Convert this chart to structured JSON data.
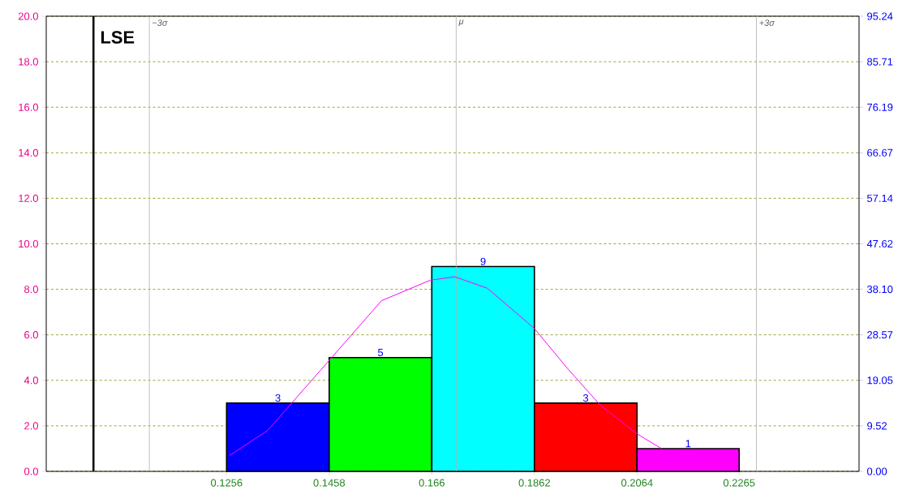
{
  "chart_data": {
    "type": "histogram",
    "bins": [
      0.1256,
      0.1458,
      0.166,
      0.1862,
      0.2064,
      0.2265
    ],
    "values": [
      3,
      5,
      9,
      3,
      1
    ],
    "colors": [
      "#0000ff",
      "#00ff00",
      "#00ffff",
      "#ff0000",
      "#ff00ff"
    ],
    "value_labels": [
      "3",
      "5",
      "9",
      "3",
      "1"
    ],
    "series": [
      {
        "type": "line",
        "color": "#ff00ff",
        "x": [
          0.1262,
          0.1337,
          0.1457,
          0.1561,
          0.1657,
          0.1705,
          0.1769,
          0.1861,
          0.1928,
          0.1992,
          0.2064,
          0.2112
        ],
        "values": [
          0.7,
          1.8,
          4.85,
          7.5,
          8.4,
          8.55,
          8.05,
          6.3,
          4.5,
          2.9,
          1.65,
          1.0
        ]
      }
    ],
    "xlim": [
      0.0901,
      0.2501
    ],
    "xticks": [
      0.1256,
      0.1458,
      0.166,
      0.1862,
      0.2064,
      0.2265
    ],
    "ylim": [
      0,
      20
    ],
    "yticks": [
      {
        "value": 0,
        "label": "0.0"
      },
      {
        "value": 2,
        "label": "2.0"
      },
      {
        "value": 4,
        "label": "4.0"
      },
      {
        "value": 6,
        "label": "6.0"
      },
      {
        "value": 8,
        "label": "8.0"
      },
      {
        "value": 10,
        "label": "10.0"
      },
      {
        "value": 12,
        "label": "12.0"
      },
      {
        "value": 14,
        "label": "14.0"
      },
      {
        "value": 16,
        "label": "16.0"
      },
      {
        "value": 18,
        "label": "18.0"
      },
      {
        "value": 20,
        "label": "20.0"
      }
    ],
    "y2lim": [
      0,
      95.24
    ],
    "y2ticks": [
      {
        "value": 0,
        "label": "0.00"
      },
      9.52,
      19.05,
      28.57,
      {
        "value": 38.1,
        "label": "38.10"
      },
      47.62,
      57.14,
      66.67,
      76.19,
      85.71,
      95.24
    ],
    "grid": "y",
    "ref_lines": [
      {
        "axis": "x",
        "value": 0.0994,
        "label": "LSE",
        "color": "#000000"
      },
      {
        "axis": "x",
        "value": 0.1104,
        "label": "−3σ",
        "color": "#b0b0b0"
      },
      {
        "axis": "x",
        "value": 0.1708,
        "label": "μ",
        "color": "#b0b0b0"
      },
      {
        "axis": "x",
        "value": 0.2299,
        "label": "+3σ",
        "color": "#b0b0b0"
      }
    ]
  }
}
